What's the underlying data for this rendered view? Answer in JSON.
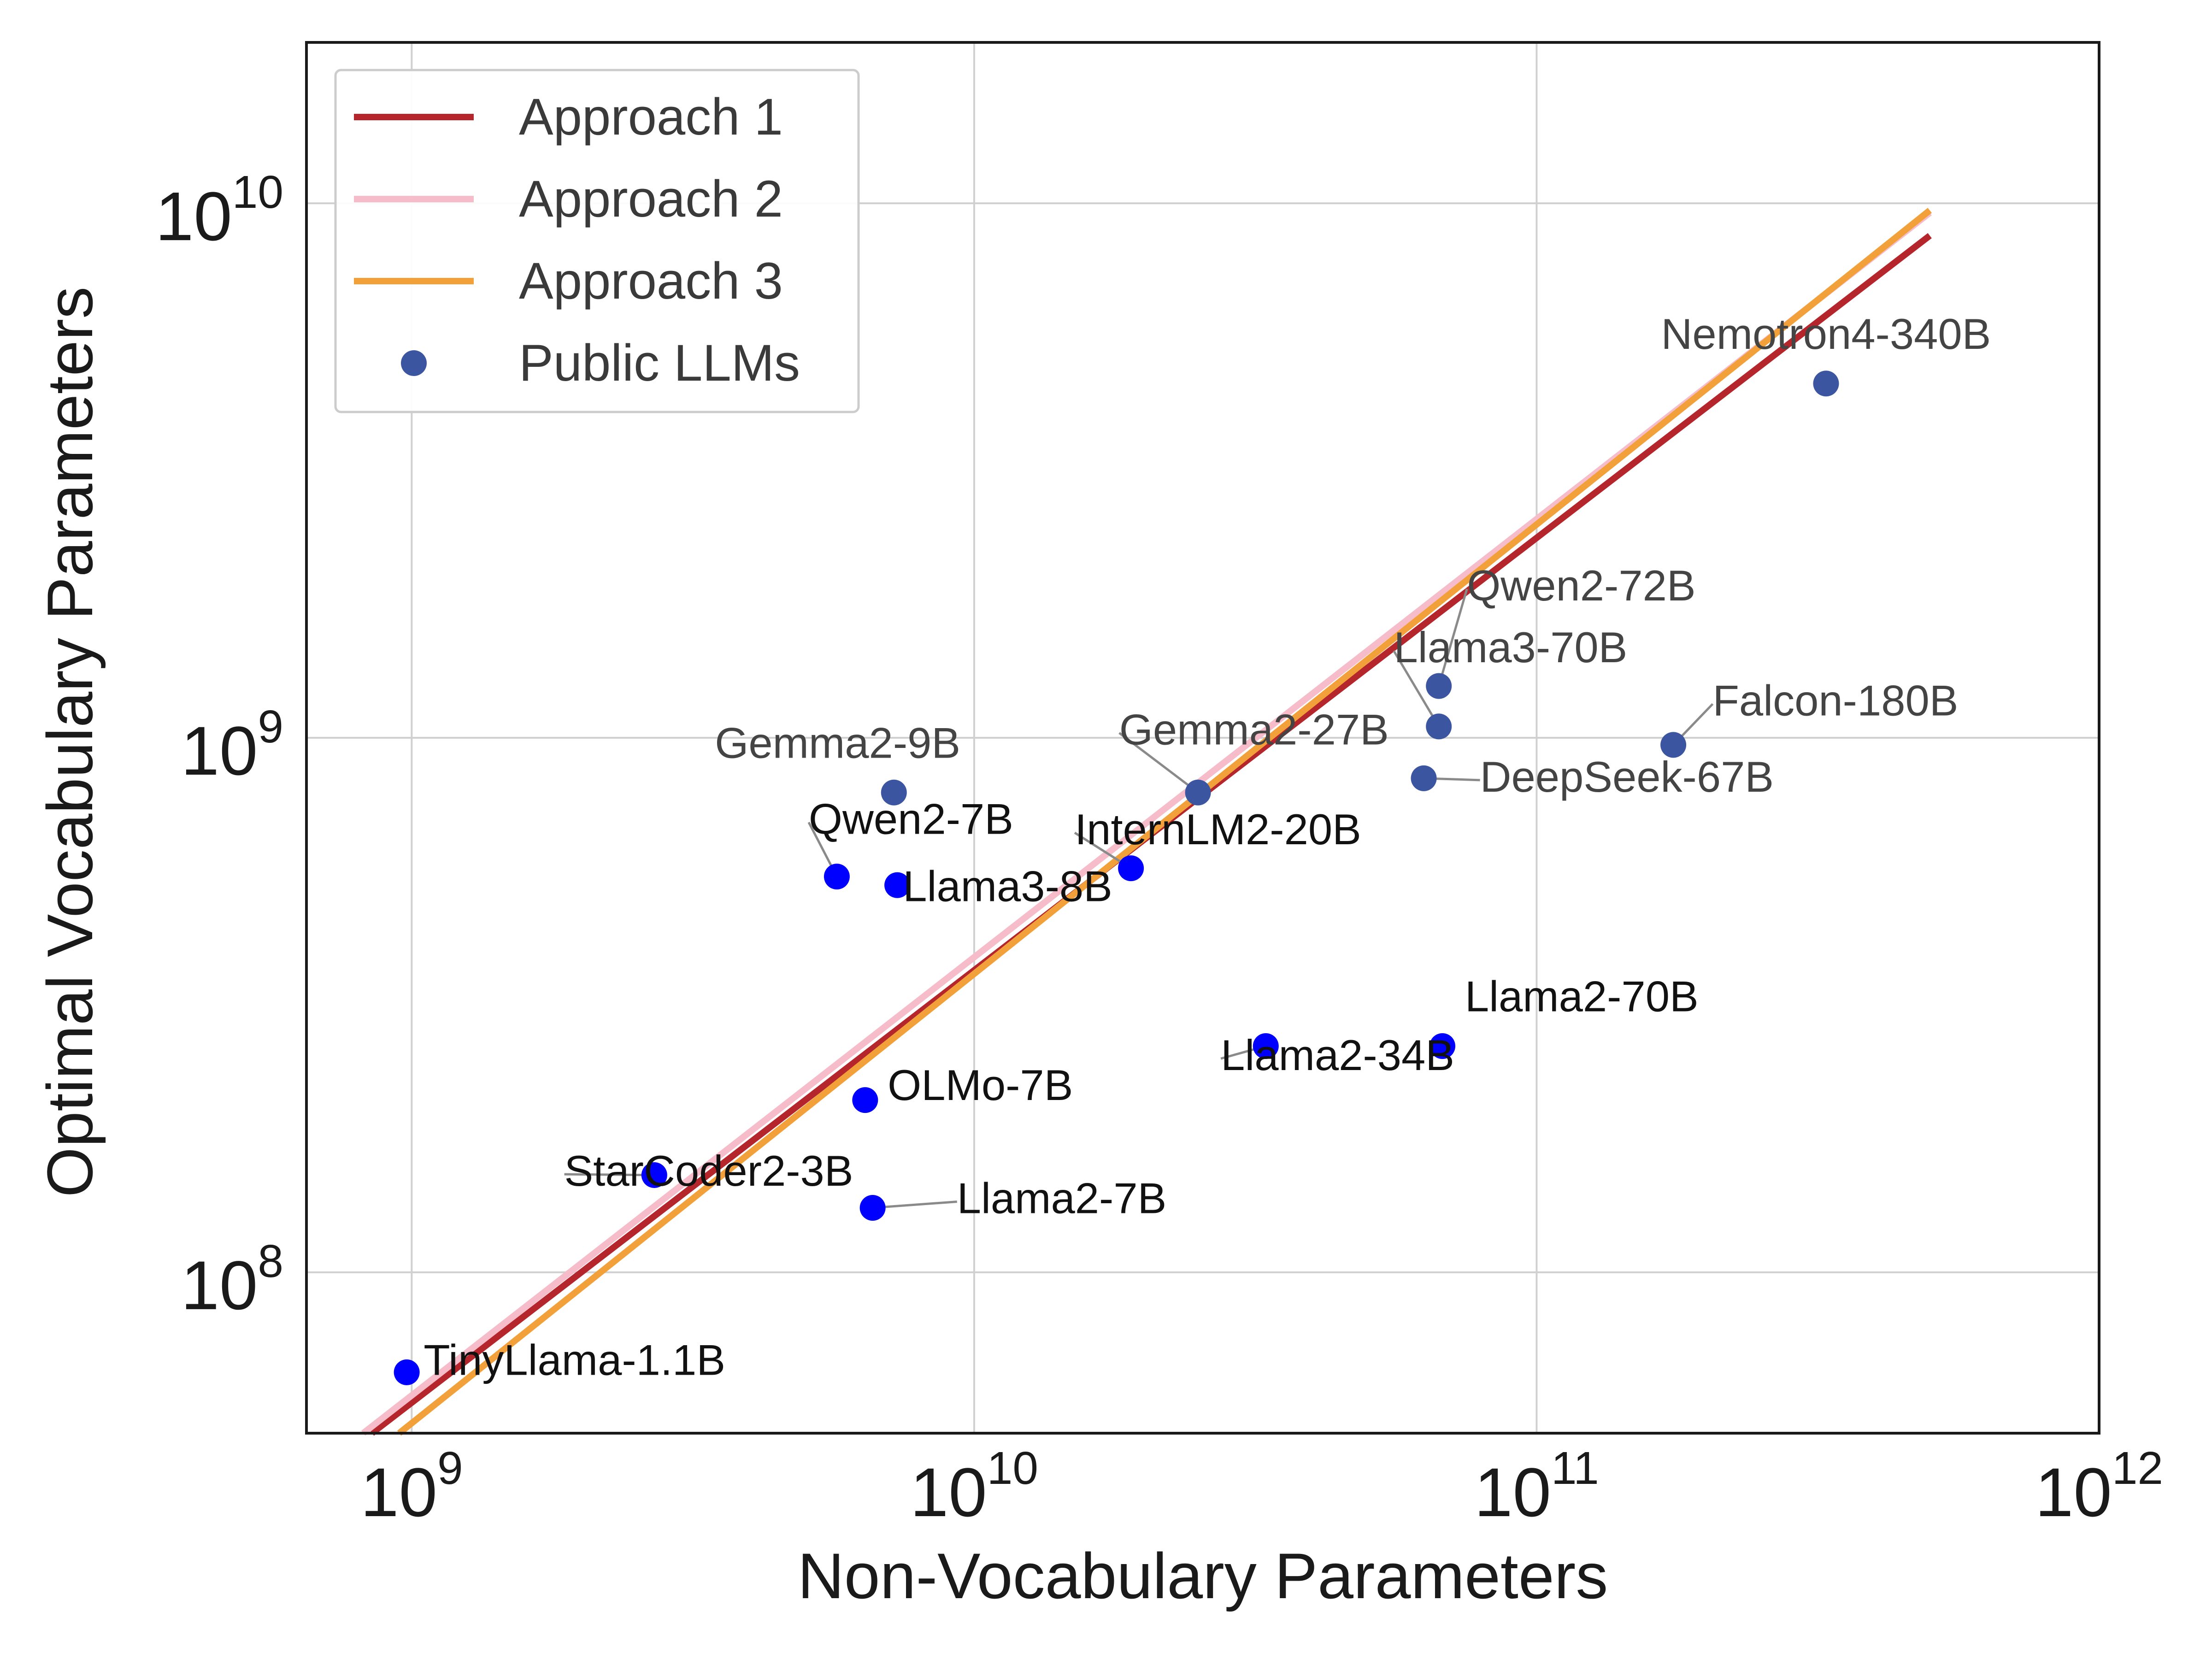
{
  "chart_data": {
    "type": "scatter",
    "xlabel": "Non-Vocabulary Parameters",
    "ylabel": "Optimal Vocabulary Parameters",
    "xscale": "log",
    "yscale": "log",
    "xlim": [
      650000000,
      1000000000000
    ],
    "ylim": [
      50000000,
      20000000000
    ],
    "grid": true,
    "legend_position": "top-left",
    "x_ticks": [
      {
        "value": 1000000000,
        "base": "10",
        "exp": "9"
      },
      {
        "value": 10000000000,
        "base": "10",
        "exp": "10"
      },
      {
        "value": 100000000000,
        "base": "10",
        "exp": "11"
      },
      {
        "value": 1000000000000,
        "base": "10",
        "exp": "12"
      }
    ],
    "y_ticks": [
      {
        "value": 100000000,
        "base": "10",
        "exp": "8"
      },
      {
        "value": 1000000000,
        "base": "10",
        "exp": "9"
      },
      {
        "value": 10000000000,
        "base": "10",
        "exp": "10"
      }
    ],
    "series": [
      {
        "name": "Approach 1",
        "kind": "line",
        "color": "#b5262c",
        "x": [
          850000000,
          500000000000
        ],
        "y": [
          50000000,
          8700000000
        ]
      },
      {
        "name": "Approach 2",
        "kind": "line",
        "color": "#f7bcc9",
        "x": [
          820000000,
          500000000000
        ],
        "y": [
          50000000,
          9600000000
        ]
      },
      {
        "name": "Approach 3",
        "kind": "line",
        "color": "#f2a03a",
        "x": [
          950000000,
          500000000000
        ],
        "y": [
          50000000,
          9700000000
        ]
      },
      {
        "name": "Public LLMs",
        "kind": "scatter",
        "color": "#3b55a0",
        "points": [
          {
            "label": "Nemotron4-340B",
            "x": 327000000000,
            "y": 4600000000,
            "color": "#3b55a0",
            "text_color": "#444444",
            "anchor": "middle",
            "lx": 0.0,
            "ly": 0.065,
            "leader": false
          },
          {
            "label": "Qwen2-72B",
            "x": 67000000000,
            "y": 1250000000,
            "color": "#3b55a0",
            "text_color": "#444444",
            "anchor": "start",
            "lx": 0.05,
            "ly": 0.16,
            "leader": true
          },
          {
            "label": "Llama3-70B",
            "x": 67000000000,
            "y": 1050000000,
            "color": "#3b55a0",
            "text_color": "#444444",
            "anchor": "start",
            "lx": -0.08,
            "ly": 0.12,
            "leader": true
          },
          {
            "label": "Falcon-180B",
            "x": 175000000000,
            "y": 970000000,
            "color": "#3b55a0",
            "text_color": "#444444",
            "anchor": "start",
            "lx": 0.07,
            "ly": 0.055,
            "leader": true
          },
          {
            "label": "DeepSeek-67B",
            "x": 63000000000,
            "y": 840000000,
            "color": "#3b55a0",
            "text_color": "#444444",
            "anchor": "start",
            "lx": 0.1,
            "ly": -0.025,
            "leader": true
          },
          {
            "label": "Gemma2-27B",
            "x": 25000000000,
            "y": 790000000,
            "color": "#3b55a0",
            "text_color": "#444444",
            "anchor": "start",
            "lx": -0.14,
            "ly": 0.09,
            "leader": true
          },
          {
            "label": "Gemma2-9B",
            "x": 7200000000,
            "y": 790000000,
            "color": "#3b55a0",
            "text_color": "#444444",
            "anchor": "middle",
            "lx": -0.1,
            "ly": 0.065,
            "leader": false
          },
          {
            "label": "Qwen2-7B",
            "x": 5700000000,
            "y": 550000000,
            "color": "#0000ff",
            "text_color": "#111111",
            "anchor": "start",
            "lx": -0.05,
            "ly": 0.08,
            "leader": true
          },
          {
            "label": "Llama3-8B",
            "x": 7300000000,
            "y": 530000000,
            "color": "#0000ff",
            "text_color": "#111111",
            "anchor": "start",
            "lx": 0.01,
            "ly": -0.03,
            "leader": false
          },
          {
            "label": "InternLM2-20B",
            "x": 19000000000,
            "y": 570000000,
            "color": "#0000ff",
            "text_color": "#111111",
            "anchor": "start",
            "lx": -0.1,
            "ly": 0.045,
            "leader": true
          },
          {
            "label": "Llama2-70B",
            "x": 68000000000,
            "y": 265000000,
            "color": "#0000ff",
            "text_color": "#111111",
            "anchor": "start",
            "lx": 0.04,
            "ly": 0.065,
            "leader": false
          },
          {
            "label": "Llama2-34B",
            "x": 33000000000,
            "y": 265000000,
            "color": "#0000ff",
            "text_color": "#111111",
            "anchor": "start",
            "lx": -0.08,
            "ly": -0.045,
            "leader": true
          },
          {
            "label": "OLMo-7B",
            "x": 6400000000,
            "y": 210000000,
            "color": "#0000ff",
            "text_color": "#111111",
            "anchor": "start",
            "lx": 0.04,
            "ly": 0.0,
            "leader": false
          },
          {
            "label": "StarCoder2-3B",
            "x": 2700000000,
            "y": 152000000,
            "color": "#0000ff",
            "text_color": "#111111",
            "anchor": "start",
            "lx": -0.16,
            "ly": -0.02,
            "leader": true
          },
          {
            "label": "Llama2-7B",
            "x": 6600000000,
            "y": 132000000,
            "color": "#0000ff",
            "text_color": "#111111",
            "anchor": "start",
            "lx": 0.15,
            "ly": -0.01,
            "leader": true
          },
          {
            "label": "TinyLlama-1.1B",
            "x": 980000000,
            "y": 65000000,
            "color": "#0000ff",
            "text_color": "#111111",
            "anchor": "start",
            "lx": 0.03,
            "ly": -0.005,
            "leader": false
          }
        ]
      }
    ],
    "legend": [
      {
        "label": "Approach 1",
        "type": "line",
        "color": "#b5262c"
      },
      {
        "label": "Approach 2",
        "type": "line",
        "color": "#f7bcc9"
      },
      {
        "label": "Approach 3",
        "type": "line",
        "color": "#f2a03a"
      },
      {
        "label": "Public LLMs",
        "type": "marker",
        "color": "#3b55a0"
      }
    ]
  }
}
